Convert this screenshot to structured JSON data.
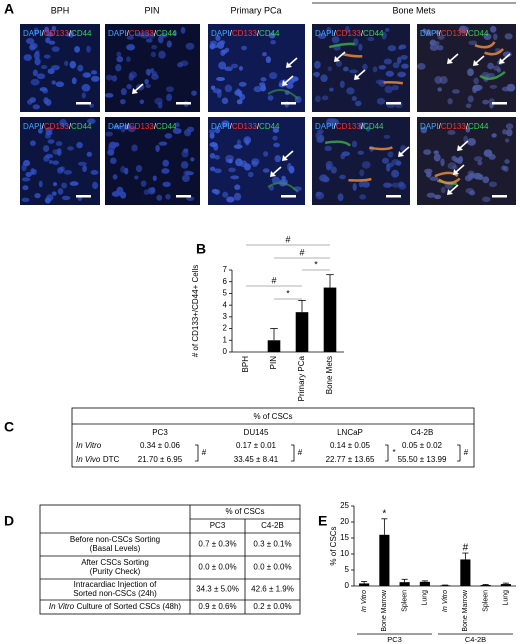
{
  "panel_labels": [
    "A",
    "B",
    "C",
    "D",
    "E"
  ],
  "panel_a": {
    "columns": [
      "BPH",
      "PIN",
      "Primary PCa",
      "Bone Mets"
    ],
    "stains": [
      "DAPI",
      "CD133",
      "CD44"
    ],
    "separator": "/"
  },
  "chart_data": [
    {
      "type": "bar",
      "y_label": "# of CD133+/CD44+ Cells",
      "categories": [
        "BPH",
        "PIN",
        "Primary PCa",
        "Bone Mets"
      ],
      "values": [
        0,
        1,
        3.4,
        5.5
      ],
      "errors": [
        0,
        1,
        1,
        1.1
      ],
      "color": "#000000",
      "ylim": [
        0,
        7
      ],
      "yticks": [
        0,
        1,
        2,
        3,
        4,
        5,
        6,
        7
      ],
      "significance": [
        "#",
        "#",
        "*",
        "#",
        "*"
      ]
    },
    {
      "type": "bar",
      "y_label": "% of CSCs",
      "categories": [
        "In Vitro",
        "Bone Marrow",
        "Spleen",
        "Lung",
        "In Vitro",
        "Bone Marrow",
        "Spleen",
        "Lung"
      ],
      "values": [
        0.8,
        16,
        1.2,
        1.3,
        0.2,
        8.3,
        0.3,
        0.6
      ],
      "errors": [
        0.6,
        5,
        0.9,
        0.3,
        0.1,
        2,
        0.2,
        0.3
      ],
      "color": "#000000",
      "ylim": [
        0,
        25
      ],
      "yticks": [
        0,
        5,
        10,
        15,
        20,
        25
      ],
      "markers": [
        null,
        "*",
        null,
        null,
        null,
        "#",
        null,
        null
      ],
      "groups": [
        "PC3",
        "C4-2B"
      ]
    }
  ],
  "table_c": {
    "header": "% of CSCs",
    "columns": [
      "PC3",
      "DU145",
      "LNCaP",
      "C4-2B"
    ],
    "rows": [
      {
        "label_italic": "In Vitro",
        "cells": [
          "0.34 ± 0.06",
          "0.17 ± 0.01",
          "0.14 ± 0.05",
          "0.05 ± 0.02"
        ]
      },
      {
        "label_italic": "In Vivo",
        "label": "DTC",
        "cells": [
          "21.70 ± 6.95",
          "33.45 ± 8.41",
          "22.77 ± 13.65",
          "55.50 ± 13.99"
        ]
      }
    ],
    "significance": [
      "#",
      "#",
      "*",
      "#"
    ]
  },
  "table_d": {
    "header": "% of CSCs",
    "columns": [
      "PC3",
      "C4-2B"
    ],
    "rows": [
      {
        "label": [
          "Before non-CSCs Sorting",
          "(Basal Levels)"
        ],
        "cells": [
          "0.7 ± 0.3%",
          "0.3 ± 0.1%"
        ]
      },
      {
        "label": [
          "After CSCs Sorting",
          "(Purity Check)"
        ],
        "cells": [
          "0.0 ± 0.0%",
          "0.0 ± 0.0%"
        ]
      },
      {
        "label": [
          "Intracardiac Injection of",
          "Sorted non-CSCs (24h)"
        ],
        "cells": [
          "34.3 ± 5.0%",
          "42.6 ± 1.9%"
        ]
      },
      {
        "label_italic": "In Vitro",
        "label": [
          "Culture of Sorted CSCs (48h)"
        ],
        "cells": [
          "0.9 ± 0.6%",
          "0.2 ± 0.0%"
        ]
      }
    ]
  }
}
